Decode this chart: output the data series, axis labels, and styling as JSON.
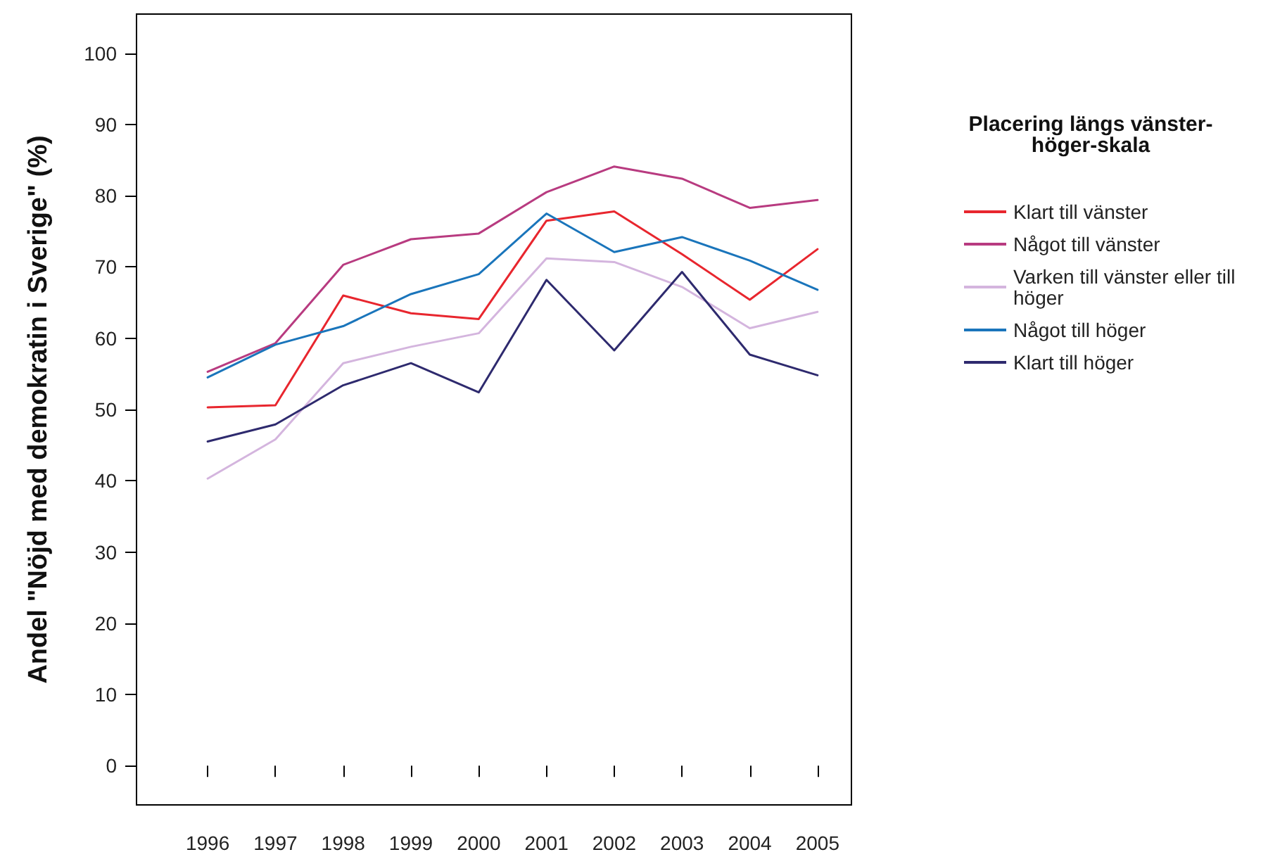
{
  "chart_data": {
    "type": "line",
    "ylabel": "Andel \"Nöjd med demokratin i Sverige\" (%)",
    "legend_title": "Placering längs vänster-höger-skala",
    "x": [
      1996,
      1997,
      1998,
      1999,
      2000,
      2001,
      2002,
      2003,
      2004,
      2005
    ],
    "xlim": [
      1994.95,
      2005.5
    ],
    "xticks": [
      1996,
      1997,
      1998,
      1999,
      2000,
      2001,
      2002,
      2003,
      2004,
      2005
    ],
    "ylim": [
      -5.5,
      105.5
    ],
    "yticks": [
      0,
      10,
      20,
      30,
      40,
      50,
      60,
      70,
      80,
      90,
      100
    ],
    "grid": false,
    "legend": "right",
    "marker": "none",
    "line_style": "solid",
    "series": [
      {
        "name": "Klart till vänster",
        "color": "#e8262e",
        "values": [
          50.3,
          50.6,
          66,
          63.5,
          62.7,
          76.5,
          77.8,
          71.8,
          65.4,
          72.5
        ]
      },
      {
        "name": "Något till vänster",
        "color": "#b83b80",
        "values": [
          55.3,
          59.3,
          70.3,
          73.9,
          74.7,
          80.5,
          84.1,
          82.4,
          78.3,
          79.4
        ]
      },
      {
        "name": "Varken till vänster eller till höger",
        "color": "#d4b5de",
        "values": [
          40.3,
          45.8,
          56.5,
          58.8,
          60.7,
          71.2,
          70.7,
          67.2,
          61.4,
          63.7
        ]
      },
      {
        "name": "Något till höger",
        "color": "#1a75bb",
        "values": [
          54.5,
          59.1,
          61.7,
          66.2,
          69.0,
          77.5,
          72.1,
          74.2,
          70.9,
          66.8
        ]
      },
      {
        "name": "Klart till höger",
        "color": "#2e2a6e",
        "values": [
          45.5,
          47.9,
          53.4,
          56.5,
          52.4,
          68.2,
          58.3,
          69.3,
          57.7,
          54.8
        ]
      }
    ]
  }
}
